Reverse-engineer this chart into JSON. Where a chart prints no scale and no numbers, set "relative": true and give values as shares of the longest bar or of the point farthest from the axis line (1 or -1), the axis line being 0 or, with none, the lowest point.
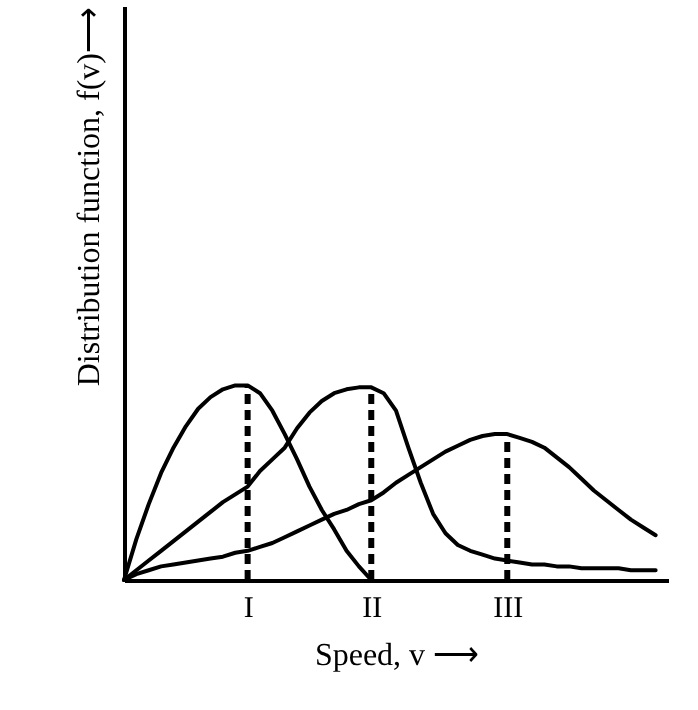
{
  "chart_data": {
    "type": "line",
    "relative": true,
    "xlabel": "Speed, v ⟶",
    "ylabel": "Distribution function, f(v)⟶",
    "categories": [
      null,
      null,
      null,
      null,
      null,
      null,
      null,
      null,
      null,
      null,
      "I",
      null,
      null,
      null,
      null,
      null,
      null,
      null,
      null,
      null,
      "II",
      null,
      null,
      null,
      null,
      null,
      null,
      null,
      null,
      null,
      null,
      "III",
      null,
      null,
      null,
      null,
      null,
      null,
      null,
      null,
      null,
      null,
      null,
      null,
      null
    ],
    "series": [
      {
        "color": "#000000",
        "values": [
          0,
          0.21,
          0.39,
          0.55,
          0.68,
          0.79,
          0.88,
          0.94,
          0.98,
          1,
          1,
          0.96,
          0.87,
          0.75,
          0.62,
          0.48,
          0.36,
          0.26,
          0.15,
          0.07,
          0,
          null,
          null,
          null,
          null,
          null,
          null,
          null,
          null,
          null,
          null,
          null,
          null,
          null,
          null,
          null,
          null,
          null,
          null,
          null,
          null,
          null,
          null,
          null,
          null
        ]
      },
      {
        "color": "#000000",
        "values": [
          0,
          0.05,
          0.1,
          0.15,
          0.2,
          0.25,
          0.3,
          0.35,
          0.4,
          0.44,
          0.48,
          0.56,
          0.62,
          0.68,
          0.78,
          0.86,
          0.92,
          0.96,
          0.98,
          0.99,
          0.99,
          0.96,
          0.87,
          0.68,
          0.5,
          0.34,
          0.24,
          0.18,
          0.15,
          0.13,
          0.11,
          0.1,
          0.09,
          0.08,
          0.08,
          0.07,
          0.07,
          0.06,
          0.06,
          0.06,
          0.06,
          0.05,
          0.05,
          0.05,
          null
        ]
      },
      {
        "color": "#000000",
        "values": [
          0,
          0.03,
          0.05,
          0.07,
          0.08,
          0.09,
          0.1,
          0.11,
          0.12,
          0.14,
          0.15,
          0.17,
          0.19,
          0.22,
          0.25,
          0.28,
          0.31,
          0.34,
          0.36,
          0.39,
          0.41,
          0.45,
          0.5,
          0.54,
          0.58,
          0.62,
          0.66,
          0.69,
          0.72,
          0.74,
          0.75,
          0.75,
          0.73,
          0.71,
          0.68,
          0.63,
          0.58,
          0.52,
          0.46,
          0.41,
          0.36,
          0.31,
          0.27,
          0.23,
          null
        ]
      }
    ],
    "ref_lines": [
      {
        "axis": "x",
        "value": "I",
        "line_style": "dashed",
        "color": "#000000"
      },
      {
        "axis": "x",
        "value": "II",
        "line_style": "dashed",
        "color": "#000000"
      },
      {
        "axis": "x",
        "value": "III",
        "line_style": "dashed",
        "color": "#000000"
      }
    ],
    "marker": "none",
    "line_style": "solid",
    "grid": false
  }
}
